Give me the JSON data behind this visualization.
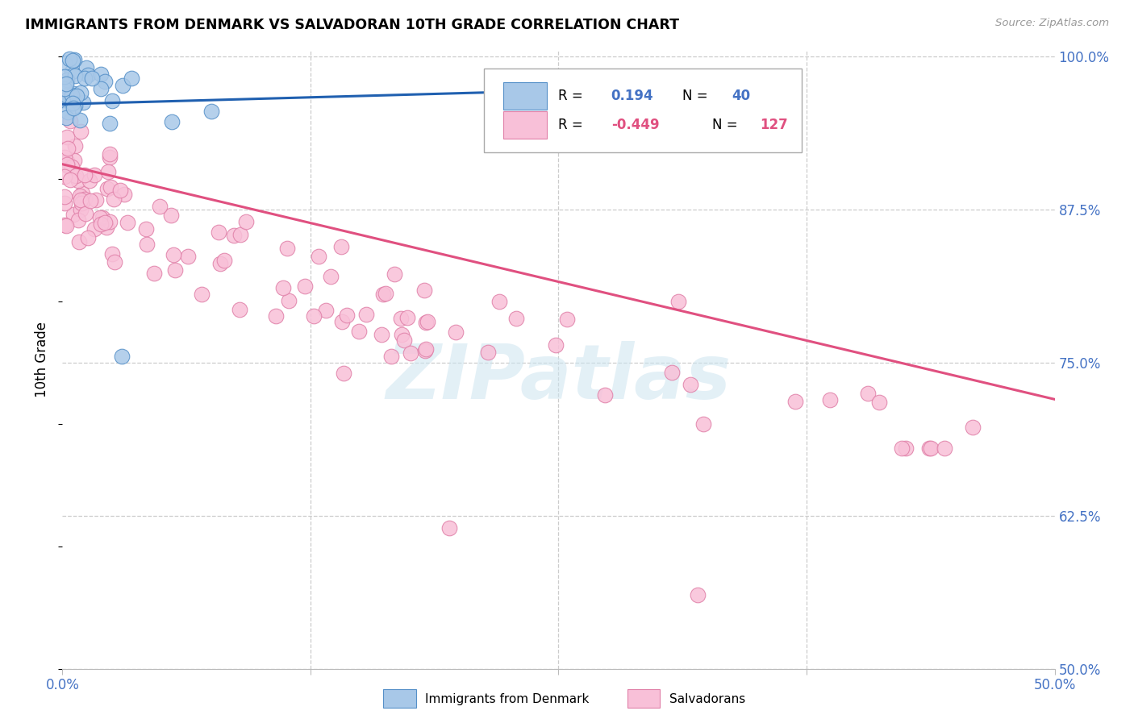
{
  "title": "IMMIGRANTS FROM DENMARK VS SALVADORAN 10TH GRADE CORRELATION CHART",
  "source": "Source: ZipAtlas.com",
  "ylabel": "10th Grade",
  "watermark_text": "ZIPatlas",
  "blue_color": "#a8c8e8",
  "blue_edge_color": "#5590c8",
  "blue_line_color": "#2060b0",
  "pink_color": "#f8c0d8",
  "pink_edge_color": "#e080a8",
  "pink_line_color": "#e05080",
  "legend_blue_r": "R =",
  "legend_blue_rv": "0.194",
  "legend_blue_n": "N =",
  "legend_blue_nv": "40",
  "legend_pink_r": "R =",
  "legend_pink_rv": "-0.449",
  "legend_pink_n": "N =",
  "legend_pink_nv": "127",
  "xlim": [
    0.0,
    0.5
  ],
  "ylim": [
    0.5,
    1.005
  ],
  "yticks": [
    0.5,
    0.625,
    0.75,
    0.875,
    1.0
  ],
  "ytick_labels": [
    "50.0%",
    "62.5%",
    "75.0%",
    "87.5%",
    "100.0%"
  ],
  "xtick_left_label": "0.0%",
  "xtick_right_label": "50.0%",
  "denmark_line_x": [
    0.0,
    0.245
  ],
  "denmark_line_y": [
    0.961,
    0.972
  ],
  "salv_line_x": [
    0.0,
    0.5
  ],
  "salv_line_y": [
    0.912,
    0.72
  ]
}
